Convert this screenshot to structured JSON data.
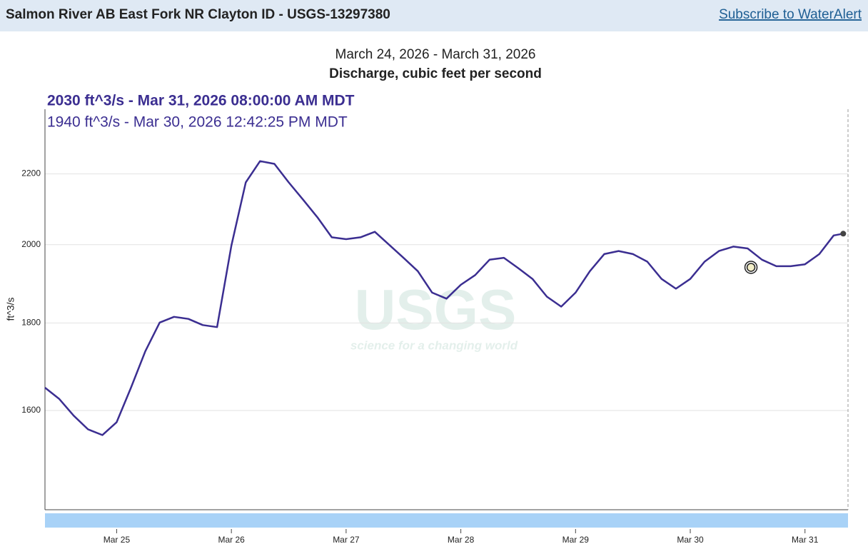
{
  "header": {
    "title": "Salmon River AB East Fork NR Clayton ID - USGS-13297380",
    "link": "Subscribe to WaterAlert"
  },
  "chart_data": {
    "type": "line",
    "subtitle": "March 24, 2026 - March 31, 2026",
    "title": "Discharge, cubic feet per second",
    "current_label": "2030 ft^3/s - Mar 31, 2026 08:00:00 AM MDT",
    "cursor": {
      "label": "1940 ft^3/s - Mar 30, 2026 12:42:25 PM MDT",
      "x": "2026-03-30T12:42",
      "value": 1940
    },
    "y_label": "ft^3/s",
    "watermark": {
      "title": "USGS",
      "tagline": "science for a changing world"
    },
    "color": "#3b2e91",
    "y_scale": "log",
    "grid": true,
    "xlim": [
      "2026-03-24T09:00",
      "2026-03-31T09:00"
    ],
    "xticks": [
      {
        "value": "2026-03-25T00:00",
        "label": "Mar 25"
      },
      {
        "value": "2026-03-26T00:00",
        "label": "Mar 26"
      },
      {
        "value": "2026-03-27T00:00",
        "label": "Mar 27"
      },
      {
        "value": "2026-03-28T00:00",
        "label": "Mar 28"
      },
      {
        "value": "2026-03-29T00:00",
        "label": "Mar 29"
      },
      {
        "value": "2026-03-30T00:00",
        "label": "Mar 30"
      },
      {
        "value": "2026-03-31T00:00",
        "label": "Mar 31"
      }
    ],
    "ylim": [
      1400,
      2400
    ],
    "yticks": [
      1600,
      1800,
      2000,
      2200
    ],
    "x": [
      "2026-03-24T09:00",
      "2026-03-24T12:00",
      "2026-03-24T15:00",
      "2026-03-24T18:00",
      "2026-03-24T21:00",
      "2026-03-25T00:00",
      "2026-03-25T03:00",
      "2026-03-25T06:00",
      "2026-03-25T09:00",
      "2026-03-25T12:00",
      "2026-03-25T15:00",
      "2026-03-25T18:00",
      "2026-03-25T21:00",
      "2026-03-26T00:00",
      "2026-03-26T03:00",
      "2026-03-26T06:00",
      "2026-03-26T09:00",
      "2026-03-26T12:00",
      "2026-03-26T15:00",
      "2026-03-26T18:00",
      "2026-03-26T21:00",
      "2026-03-27T00:00",
      "2026-03-27T03:00",
      "2026-03-27T06:00",
      "2026-03-27T09:00",
      "2026-03-27T12:00",
      "2026-03-27T15:00",
      "2026-03-27T18:00",
      "2026-03-27T21:00",
      "2026-03-28T00:00",
      "2026-03-28T03:00",
      "2026-03-28T06:00",
      "2026-03-28T09:00",
      "2026-03-28T12:00",
      "2026-03-28T15:00",
      "2026-03-28T18:00",
      "2026-03-28T21:00",
      "2026-03-29T00:00",
      "2026-03-29T03:00",
      "2026-03-29T06:00",
      "2026-03-29T09:00",
      "2026-03-29T12:00",
      "2026-03-29T15:00",
      "2026-03-29T18:00",
      "2026-03-29T21:00",
      "2026-03-30T00:00",
      "2026-03-30T03:00",
      "2026-03-30T06:00",
      "2026-03-30T09:00",
      "2026-03-30T12:00",
      "2026-03-30T15:00",
      "2026-03-30T18:00",
      "2026-03-30T21:00",
      "2026-03-31T00:00",
      "2026-03-31T03:00",
      "2026-03-31T06:00",
      "2026-03-31T08:00"
    ],
    "values": [
      1650,
      1625,
      1589,
      1560,
      1548,
      1575,
      1650,
      1733,
      1801,
      1815,
      1810,
      1795,
      1790,
      1998,
      2175,
      2238,
      2230,
      2175,
      2125,
      2075,
      2020,
      2015,
      2020,
      2035,
      2000,
      1965,
      1930,
      1875,
      1860,
      1895,
      1920,
      1960,
      1965,
      1938,
      1910,
      1865,
      1840,
      1875,
      1930,
      1975,
      1983,
      1975,
      1955,
      1910,
      1885,
      1910,
      1955,
      1983,
      1995,
      1990,
      1960,
      1943,
      1943,
      1948,
      1975,
      2025,
      2030
    ]
  }
}
